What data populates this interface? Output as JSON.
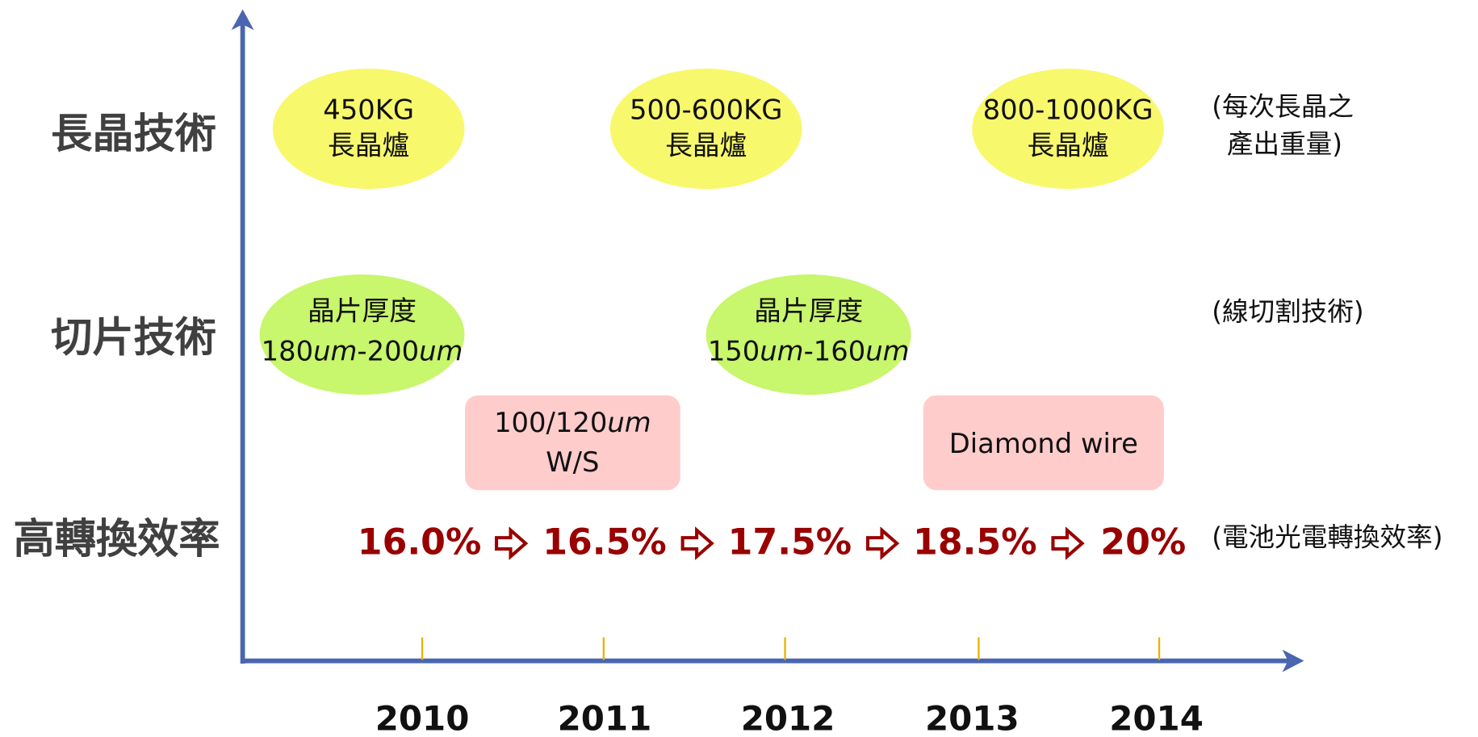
{
  "row_labels": [
    "長晶技術",
    "切片技術",
    "高轉換效率"
  ],
  "crystal_growth": [
    {
      "lines": [
        [
          {
            "text": "450KG"
          }
        ],
        [
          {
            "text": "長晶爐"
          }
        ]
      ]
    },
    {
      "lines": [
        [
          {
            "text": "500-600KG"
          }
        ],
        [
          {
            "text": "長晶爐"
          }
        ]
      ]
    },
    {
      "lines": [
        [
          {
            "text": "800-1000KG"
          }
        ],
        [
          {
            "text": "長晶爐"
          }
        ]
      ]
    }
  ],
  "slicing": [
    {
      "lines": [
        [
          {
            "text": "晶片厚度"
          }
        ],
        [
          {
            "text": "180"
          },
          {
            "text": "um",
            "italic": true
          },
          {
            "text": "-200"
          },
          {
            "text": "um",
            "italic": true
          }
        ]
      ]
    },
    {
      "lines": [
        [
          {
            "text": "100/120"
          },
          {
            "text": "um",
            "italic": true
          }
        ],
        [
          {
            "text": "W/S"
          }
        ]
      ]
    },
    {
      "lines": [
        [
          {
            "text": "晶片厚度"
          }
        ],
        [
          {
            "text": "150"
          },
          {
            "text": "um",
            "italic": true
          },
          {
            "text": "-160"
          },
          {
            "text": "um",
            "italic": true
          }
        ]
      ]
    },
    {
      "lines": [
        [
          {
            "text": "Diamond wire"
          }
        ]
      ]
    }
  ],
  "efficiency": [
    "16.0%",
    "16.5%",
    "17.5%",
    "18.5%",
    "20%"
  ],
  "notes": [
    [
      "(每次長晶之",
      "產出重量)"
    ],
    [
      "(線切割技術)"
    ],
    [
      "(電池光電轉換效率)"
    ]
  ],
  "years": [
    "2010",
    "2011",
    "2012",
    "2013",
    "2014"
  ]
}
